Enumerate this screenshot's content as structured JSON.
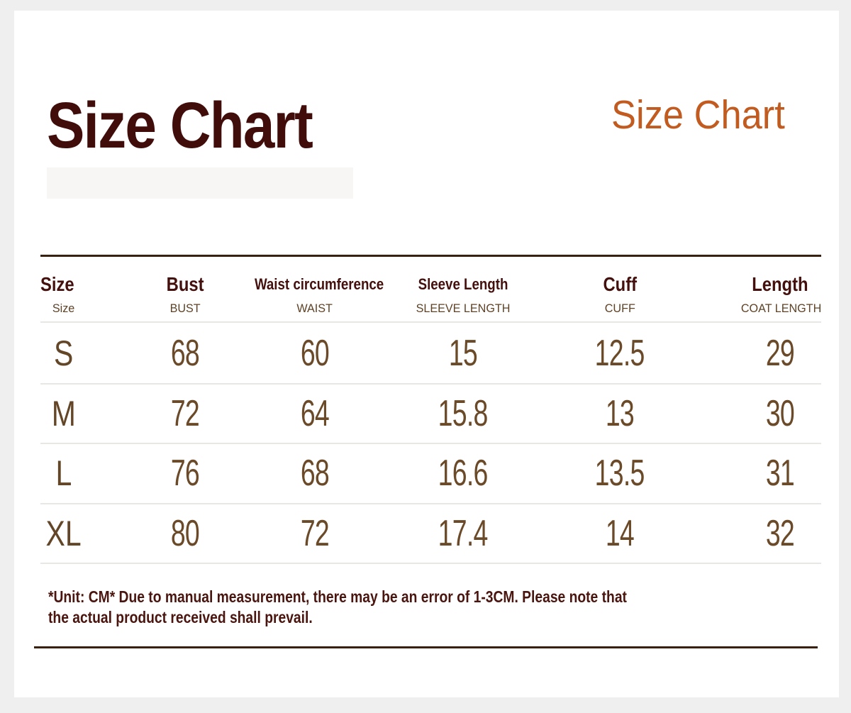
{
  "header": {
    "main_title": "Size Chart",
    "corner_title": "Size Chart"
  },
  "table": {
    "columns": [
      {
        "label": "Size",
        "sublabel": "Size"
      },
      {
        "label": "Bust",
        "sublabel": "BUST"
      },
      {
        "label": "Waist circumference",
        "sublabel": "WAIST"
      },
      {
        "label": "Sleeve Length",
        "sublabel": "SLEEVE LENGTH"
      },
      {
        "label": "Cuff",
        "sublabel": "CUFF"
      },
      {
        "label": "Length",
        "sublabel": "COAT LENGTH"
      }
    ],
    "rows": [
      {
        "cells": [
          "S",
          "68",
          "60",
          "15",
          "12.5",
          "29"
        ]
      },
      {
        "cells": [
          "M",
          "72",
          "64",
          "15.8",
          "13",
          "30"
        ]
      },
      {
        "cells": [
          "L",
          "76",
          "68",
          "16.6",
          "13.5",
          "31"
        ]
      },
      {
        "cells": [
          "XL",
          "80",
          "72",
          "17.4",
          "14",
          "32"
        ]
      }
    ]
  },
  "footnote": {
    "lines": [
      "*Unit: CM* Due to manual measurement, there may be an error of 1-3CM. Please note that",
      "the actual product received shall prevail."
    ]
  },
  "colors": {
    "page_background": "#efefef",
    "card_background": "#ffffff",
    "title_maroon": "#400d0b",
    "title_orange": "#c15b20",
    "header_maroon": "#43100d",
    "subheader_brown": "#5e4226",
    "data_brown": "#6a4a28",
    "footnote_maroon": "#4a150f",
    "rule_dark": "#38220f",
    "rule_light": "#e9e7e4"
  }
}
